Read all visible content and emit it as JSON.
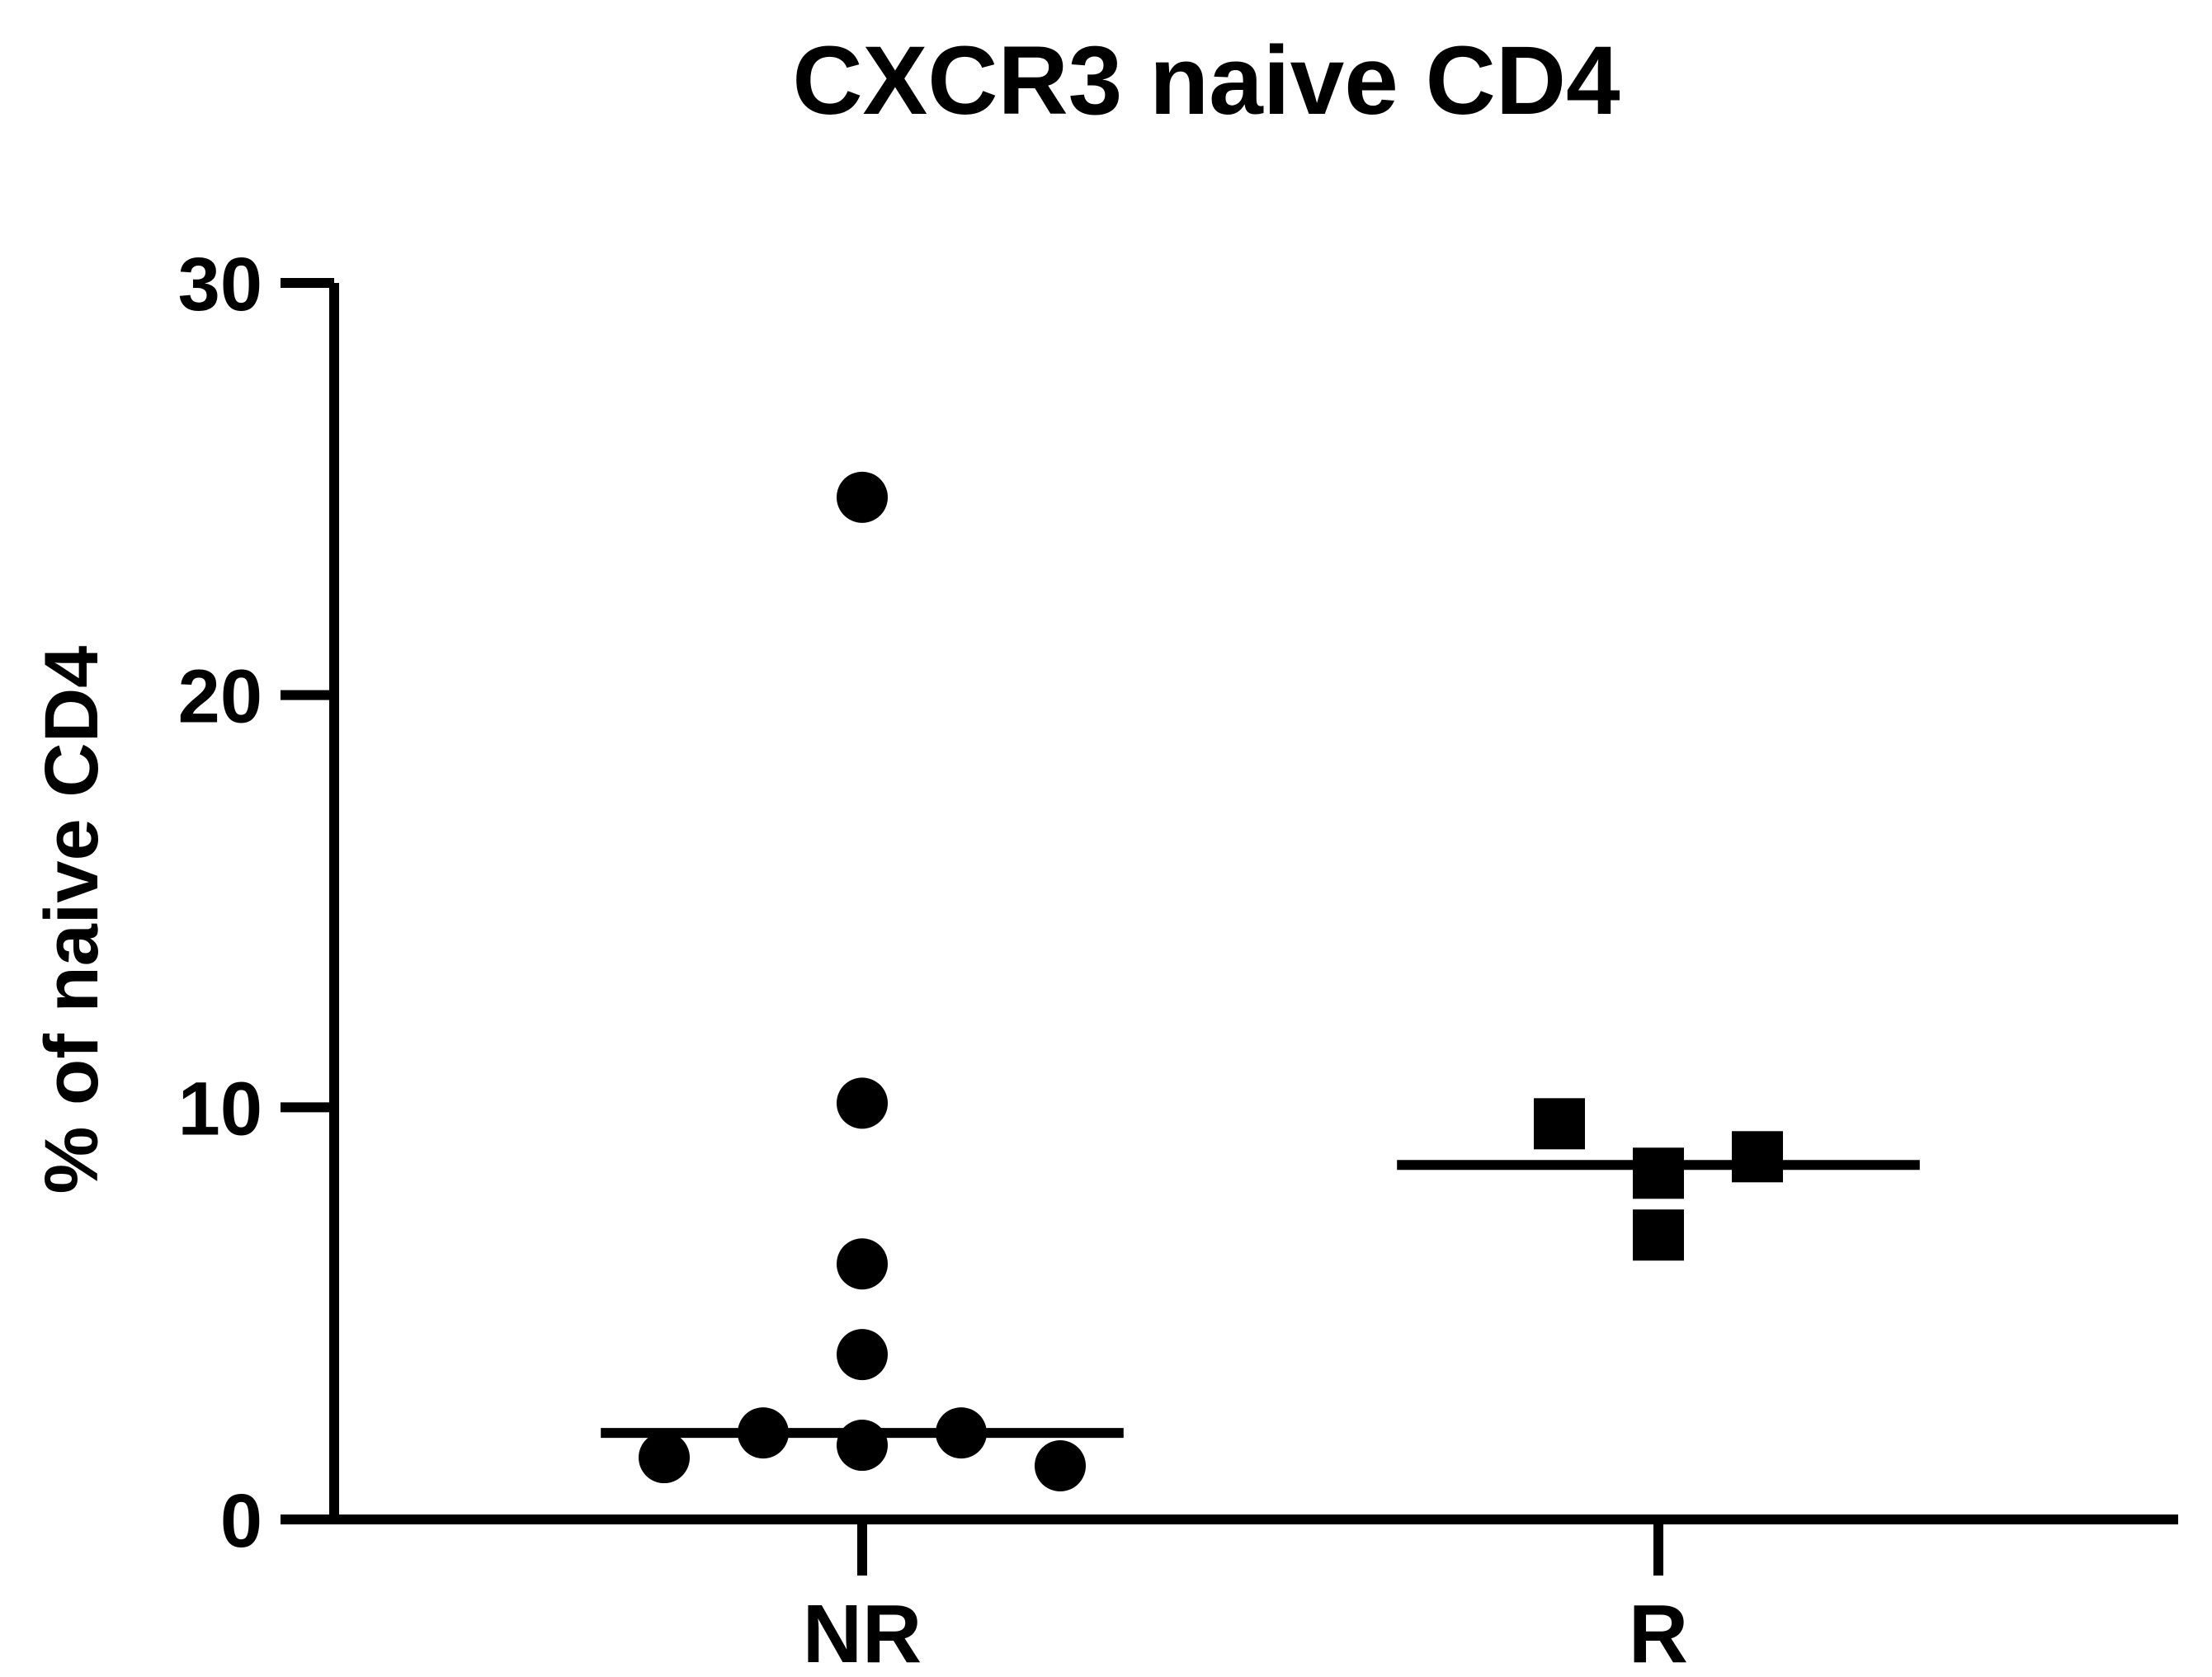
{
  "chart_data": {
    "type": "scatter",
    "title": "CXCR3 naive CD4",
    "ylabel": "% of naive CD4",
    "xlabel": "",
    "categories": [
      "NR",
      "R"
    ],
    "ylim": [
      0,
      30
    ],
    "yticks": [
      0,
      10,
      20,
      30
    ],
    "grid": false,
    "legend": "none",
    "series": [
      {
        "category": "NR",
        "marker": "circle",
        "color": "#000000",
        "points": [
          {
            "x": -0.25,
            "y": 1.5
          },
          {
            "x": -0.125,
            "y": 2.1
          },
          {
            "x": 0.0,
            "y": 24.8
          },
          {
            "x": 0.0,
            "y": 10.1
          },
          {
            "x": 0.0,
            "y": 6.2
          },
          {
            "x": 0.0,
            "y": 4.0
          },
          {
            "x": 0.0,
            "y": 1.8
          },
          {
            "x": 0.125,
            "y": 2.1
          },
          {
            "x": 0.25,
            "y": 1.3
          }
        ],
        "median": 2.1
      },
      {
        "category": "R",
        "marker": "square",
        "color": "#000000",
        "points": [
          {
            "x": -0.125,
            "y": 9.6
          },
          {
            "x": 0.0,
            "y": 8.4
          },
          {
            "x": 0.0,
            "y": 6.9
          },
          {
            "x": 0.125,
            "y": 8.8
          }
        ],
        "median": 8.6
      }
    ]
  }
}
